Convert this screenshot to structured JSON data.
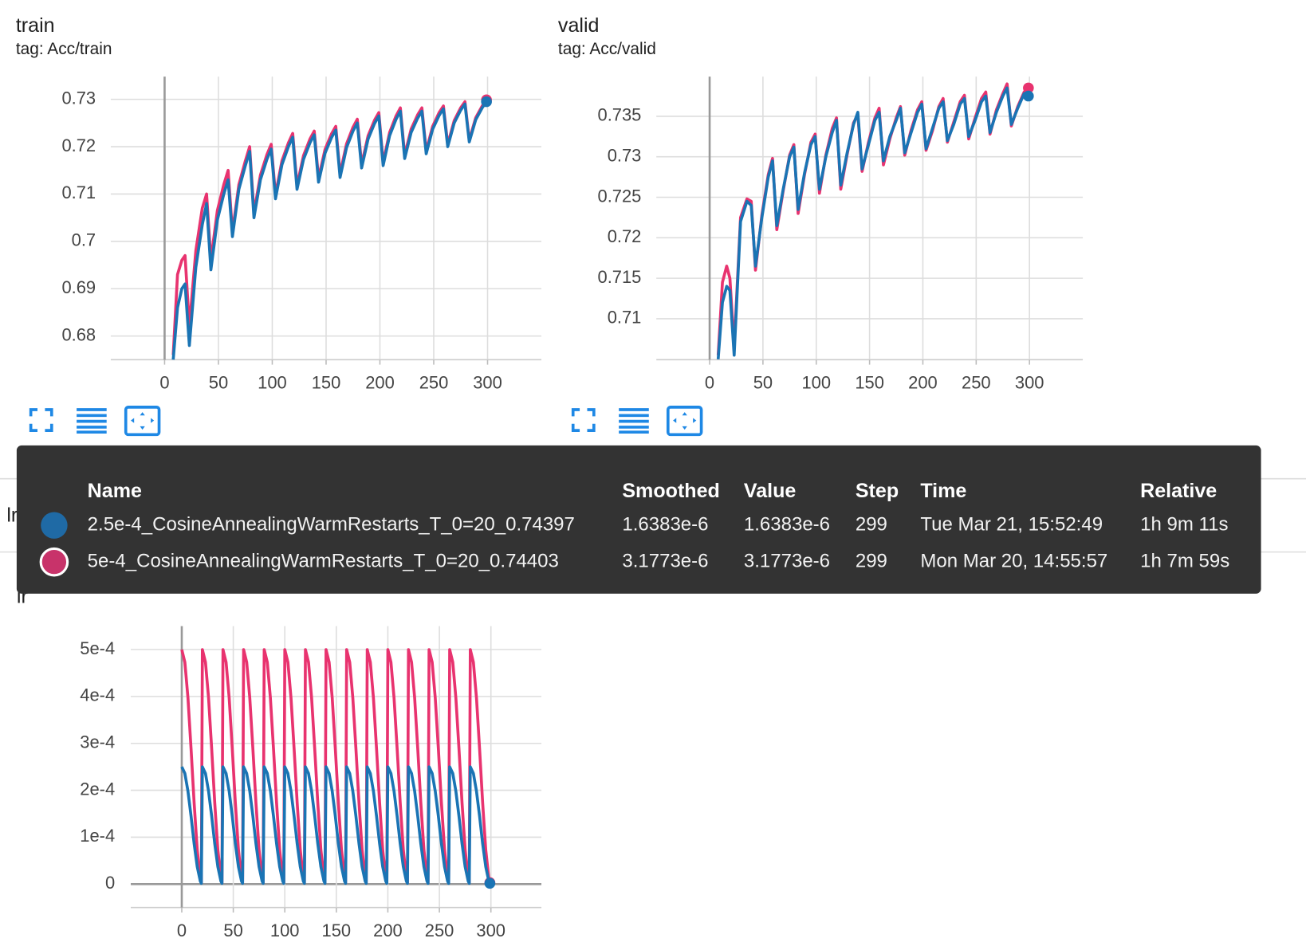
{
  "section_title": "lr",
  "chart_data": [
    {
      "type": "line",
      "title": "train",
      "subtitle": "tag: Acc/train",
      "xlim": [
        -50,
        350
      ],
      "xticks": [
        0,
        50,
        100,
        150,
        200,
        250,
        300
      ],
      "ylim": [
        0.675,
        0.7348
      ],
      "yticks": [
        0.68,
        0.69,
        0.7,
        0.71,
        0.72,
        0.73
      ],
      "grid": true,
      "end_marker": true,
      "x": [
        8,
        12,
        16,
        19,
        23,
        29,
        35,
        39,
        43,
        49,
        55,
        59,
        63,
        69,
        75,
        79,
        83,
        89,
        95,
        99,
        103,
        109,
        115,
        119,
        123,
        129,
        135,
        139,
        143,
        149,
        155,
        159,
        163,
        169,
        175,
        179,
        183,
        189,
        195,
        199,
        203,
        209,
        215,
        219,
        223,
        229,
        235,
        239,
        243,
        249,
        255,
        259,
        263,
        269,
        275,
        279,
        283,
        289,
        295,
        299
      ],
      "series": [
        {
          "color": "#e8336f",
          "values": [
            0.676,
            0.693,
            0.696,
            0.697,
            0.682,
            0.698,
            0.707,
            0.71,
            0.696,
            0.7065,
            0.712,
            0.715,
            0.702,
            0.712,
            0.717,
            0.72,
            0.706,
            0.714,
            0.7183,
            0.7205,
            0.7098,
            0.717,
            0.7208,
            0.7228,
            0.7118,
            0.7181,
            0.7216,
            0.7233,
            0.7133,
            0.7194,
            0.7227,
            0.7243,
            0.7143,
            0.7206,
            0.7241,
            0.7258,
            0.7162,
            0.7223,
            0.7256,
            0.7272,
            0.7167,
            0.723,
            0.7265,
            0.7282,
            0.7182,
            0.7237,
            0.7267,
            0.7282,
            0.7191,
            0.7243,
            0.7272,
            0.7286,
            0.7205,
            0.7255,
            0.7282,
            0.7295,
            0.7214,
            0.7261,
            0.7286,
            0.7299
          ]
        },
        {
          "color": "#1a74b4",
          "values": [
            0.675,
            0.686,
            0.69,
            0.691,
            0.678,
            0.6945,
            0.7035,
            0.708,
            0.694,
            0.7045,
            0.71,
            0.713,
            0.701,
            0.711,
            0.716,
            0.719,
            0.705,
            0.713,
            0.7173,
            0.7195,
            0.709,
            0.7162,
            0.72,
            0.722,
            0.711,
            0.7173,
            0.7208,
            0.7225,
            0.7125,
            0.7186,
            0.7219,
            0.7235,
            0.7135,
            0.7198,
            0.7233,
            0.725,
            0.7155,
            0.7216,
            0.7249,
            0.7265,
            0.716,
            0.7223,
            0.7258,
            0.7275,
            0.7175,
            0.723,
            0.726,
            0.7275,
            0.7185,
            0.7237,
            0.7266,
            0.728,
            0.72,
            0.725,
            0.7277,
            0.729,
            0.721,
            0.7257,
            0.7282,
            0.7295
          ]
        }
      ]
    },
    {
      "type": "line",
      "title": "valid",
      "subtitle": "tag: Acc/valid",
      "xlim": [
        -50,
        350
      ],
      "xticks": [
        0,
        50,
        100,
        150,
        200,
        250,
        300
      ],
      "ylim": [
        0.70494,
        0.7399
      ],
      "yticks": [
        0.71,
        0.715,
        0.72,
        0.725,
        0.73,
        0.735
      ],
      "grid": true,
      "end_marker": true,
      "x": [
        8,
        12,
        16,
        19,
        23,
        29,
        35,
        39,
        43,
        49,
        55,
        59,
        63,
        69,
        75,
        79,
        83,
        89,
        95,
        99,
        103,
        109,
        115,
        119,
        123,
        129,
        135,
        139,
        143,
        149,
        155,
        159,
        163,
        169,
        175,
        179,
        183,
        189,
        195,
        199,
        203,
        209,
        215,
        219,
        223,
        229,
        235,
        239,
        243,
        249,
        255,
        259,
        263,
        269,
        275,
        279,
        283,
        289,
        295,
        299
      ],
      "series": [
        {
          "color": "#e8336f",
          "values": [
            0.7055,
            0.7145,
            0.7165,
            0.715,
            0.7065,
            0.7225,
            0.7248,
            0.7245,
            0.716,
            0.7228,
            0.7278,
            0.7298,
            0.721,
            0.7258,
            0.7302,
            0.7315,
            0.723,
            0.7278,
            0.7318,
            0.7328,
            0.7255,
            0.7302,
            0.7335,
            0.7348,
            0.726,
            0.7303,
            0.7342,
            0.7352,
            0.7282,
            0.7318,
            0.7348,
            0.736,
            0.729,
            0.7322,
            0.7348,
            0.7362,
            0.7302,
            0.7333,
            0.7358,
            0.7368,
            0.7308,
            0.7332,
            0.7362,
            0.7372,
            0.7318,
            0.7343,
            0.7368,
            0.7376,
            0.7322,
            0.7348,
            0.7372,
            0.738,
            0.7328,
            0.7358,
            0.7378,
            0.739,
            0.7338,
            0.7362,
            0.738,
            0.7385
          ]
        },
        {
          "color": "#1a74b4",
          "values": [
            0.705,
            0.712,
            0.714,
            0.7135,
            0.7055,
            0.722,
            0.7245,
            0.724,
            0.7165,
            0.7225,
            0.7275,
            0.7295,
            0.7215,
            0.726,
            0.73,
            0.7312,
            0.7235,
            0.728,
            0.7315,
            0.7325,
            0.726,
            0.73,
            0.733,
            0.7345,
            0.7265,
            0.7305,
            0.734,
            0.7355,
            0.7285,
            0.7315,
            0.7345,
            0.7355,
            0.7295,
            0.7325,
            0.7345,
            0.736,
            0.7305,
            0.733,
            0.7355,
            0.7365,
            0.731,
            0.7335,
            0.736,
            0.7368,
            0.732,
            0.734,
            0.7365,
            0.7372,
            0.7325,
            0.7345,
            0.7368,
            0.7375,
            0.733,
            0.7355,
            0.7375,
            0.7385,
            0.734,
            0.736,
            0.7378,
            0.7375
          ]
        }
      ]
    },
    {
      "type": "line",
      "title": "lr",
      "xlim": [
        -49.5,
        349
      ],
      "xticks": [
        0,
        50,
        100,
        150,
        200,
        250,
        300
      ],
      "ylim": [
        -5e-05,
        0.00055
      ],
      "yticks": [
        0,
        {
          "value": 0.0001,
          "label": "1e-4"
        },
        {
          "value": 0.0002,
          "label": "2e-4"
        },
        {
          "value": 0.0003,
          "label": "3e-4"
        },
        {
          "value": 0.0004,
          "label": "4e-4"
        },
        {
          "value": 0.0005,
          "label": "5e-4"
        }
      ],
      "grid": true,
      "end_marker": true,
      "x": [
        0,
        3,
        6,
        9,
        12,
        15,
        18,
        19,
        20,
        23,
        26,
        29,
        32,
        35,
        38,
        39,
        40,
        43,
        46,
        49,
        52,
        55,
        58,
        59,
        60,
        63,
        66,
        69,
        72,
        75,
        78,
        79,
        80,
        83,
        86,
        89,
        92,
        95,
        98,
        99,
        100,
        103,
        106,
        109,
        112,
        115,
        118,
        119,
        120,
        123,
        126,
        129,
        132,
        135,
        138,
        139,
        140,
        143,
        146,
        149,
        152,
        155,
        158,
        159,
        160,
        163,
        166,
        169,
        172,
        175,
        178,
        179,
        180,
        183,
        186,
        189,
        192,
        195,
        198,
        199,
        200,
        203,
        206,
        209,
        212,
        215,
        218,
        219,
        220,
        223,
        226,
        229,
        232,
        235,
        238,
        239,
        240,
        243,
        246,
        249,
        252,
        255,
        258,
        259,
        260,
        263,
        266,
        269,
        272,
        275,
        278,
        279,
        280,
        283,
        286,
        289,
        292,
        295,
        298,
        299
      ],
      "series": [
        {
          "color": "#e8336f",
          "values": [
            0.0005,
            0.000473,
            0.000397,
            0.000289,
            0.000173,
            7.3e-05,
            1.2e-05,
            3.2e-06,
            0.0005,
            0.000473,
            0.000397,
            0.000289,
            0.000173,
            7.3e-05,
            1.2e-05,
            3.2e-06,
            0.0005,
            0.000473,
            0.000397,
            0.000289,
            0.000173,
            7.3e-05,
            1.2e-05,
            3.2e-06,
            0.0005,
            0.000473,
            0.000397,
            0.000289,
            0.000173,
            7.3e-05,
            1.2e-05,
            3.2e-06,
            0.0005,
            0.000473,
            0.000397,
            0.000289,
            0.000173,
            7.3e-05,
            1.2e-05,
            3.2e-06,
            0.0005,
            0.000473,
            0.000397,
            0.000289,
            0.000173,
            7.3e-05,
            1.2e-05,
            3.2e-06,
            0.0005,
            0.000473,
            0.000397,
            0.000289,
            0.000173,
            7.3e-05,
            1.2e-05,
            3.2e-06,
            0.0005,
            0.000473,
            0.000397,
            0.000289,
            0.000173,
            7.3e-05,
            1.2e-05,
            3.2e-06,
            0.0005,
            0.000473,
            0.000397,
            0.000289,
            0.000173,
            7.3e-05,
            1.2e-05,
            3.2e-06,
            0.0005,
            0.000473,
            0.000397,
            0.000289,
            0.000173,
            7.3e-05,
            1.2e-05,
            3.2e-06,
            0.0005,
            0.000473,
            0.000397,
            0.000289,
            0.000173,
            7.3e-05,
            1.2e-05,
            3.2e-06,
            0.0005,
            0.000473,
            0.000397,
            0.000289,
            0.000173,
            7.3e-05,
            1.2e-05,
            3.2e-06,
            0.0005,
            0.000473,
            0.000397,
            0.000289,
            0.000173,
            7.3e-05,
            1.2e-05,
            3.2e-06,
            0.0005,
            0.000473,
            0.000397,
            0.000289,
            0.000173,
            7.3e-05,
            1.2e-05,
            3.2e-06,
            0.0005,
            0.000473,
            0.000397,
            0.000289,
            0.000173,
            7.3e-05,
            1.2e-05,
            3.2e-06
          ]
        },
        {
          "color": "#1a74b4",
          "values": [
            0.00025,
            0.000236,
            0.000198,
            0.000145,
            8.6e-05,
            3.7e-05,
            6e-06,
            1.6e-06,
            0.00025,
            0.000236,
            0.000198,
            0.000145,
            8.6e-05,
            3.7e-05,
            6e-06,
            1.6e-06,
            0.00025,
            0.000236,
            0.000198,
            0.000145,
            8.6e-05,
            3.7e-05,
            6e-06,
            1.6e-06,
            0.00025,
            0.000236,
            0.000198,
            0.000145,
            8.6e-05,
            3.7e-05,
            6e-06,
            1.6e-06,
            0.00025,
            0.000236,
            0.000198,
            0.000145,
            8.6e-05,
            3.7e-05,
            6e-06,
            1.6e-06,
            0.00025,
            0.000236,
            0.000198,
            0.000145,
            8.6e-05,
            3.7e-05,
            6e-06,
            1.6e-06,
            0.00025,
            0.000236,
            0.000198,
            0.000145,
            8.6e-05,
            3.7e-05,
            6e-06,
            1.6e-06,
            0.00025,
            0.000236,
            0.000198,
            0.000145,
            8.6e-05,
            3.7e-05,
            6e-06,
            1.6e-06,
            0.00025,
            0.000236,
            0.000198,
            0.000145,
            8.6e-05,
            3.7e-05,
            6e-06,
            1.6e-06,
            0.00025,
            0.000236,
            0.000198,
            0.000145,
            8.6e-05,
            3.7e-05,
            6e-06,
            1.6e-06,
            0.00025,
            0.000236,
            0.000198,
            0.000145,
            8.6e-05,
            3.7e-05,
            6e-06,
            1.6e-06,
            0.00025,
            0.000236,
            0.000198,
            0.000145,
            8.6e-05,
            3.7e-05,
            6e-06,
            1.6e-06,
            0.00025,
            0.000236,
            0.000198,
            0.000145,
            8.6e-05,
            3.7e-05,
            6e-06,
            1.6e-06,
            0.00025,
            0.000236,
            0.000198,
            0.000145,
            8.6e-05,
            3.7e-05,
            6e-06,
            1.6e-06,
            0.00025,
            0.000236,
            0.000198,
            0.000145,
            8.6e-05,
            3.7e-05,
            6e-06,
            1.6e-06
          ]
        }
      ]
    }
  ],
  "tooltip": {
    "headers": [
      "Name",
      "Smoothed",
      "Value",
      "Step",
      "Time",
      "Relative"
    ],
    "rows": [
      {
        "color": "#1f6aa5",
        "cells": [
          "2.5e-4_CosineAnnealingWarmRestarts_T_0=20_0.74397",
          "1.6383e-6",
          "1.6383e-6",
          299,
          "Tue Mar 21, 15:52:49",
          "1h 9m 11s"
        ]
      },
      {
        "color": "#c8336a",
        "cells": [
          "5e-4_CosineAnnealingWarmRestarts_T_0=20_0.74403",
          "3.1773e-6",
          "3.1773e-6",
          299,
          "Mon Mar 20, 14:55:57",
          "1h 7m 59s"
        ]
      }
    ]
  }
}
